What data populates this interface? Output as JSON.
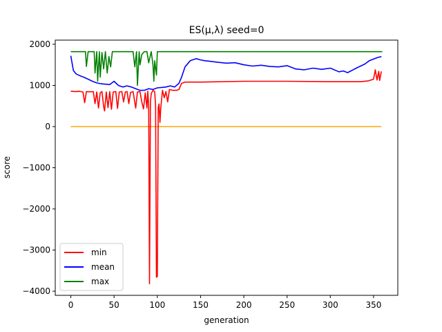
{
  "chart_data": {
    "type": "line",
    "title": "ES(μ,λ) seed=0",
    "xlabel": "generation",
    "ylabel": "score",
    "xlim": [
      -18,
      378
    ],
    "ylim": [
      -4100,
      2100
    ],
    "xticks": [
      0,
      50,
      100,
      150,
      200,
      250,
      300,
      350
    ],
    "yticks": [
      -4000,
      -3000,
      -2000,
      -1000,
      0,
      1000,
      2000
    ],
    "grid": false,
    "legend": "lower-left",
    "legend_entries": [
      "min",
      "mean",
      "max"
    ],
    "series": [
      {
        "name": "min",
        "color": "#ff0000",
        "points": [
          [
            0,
            860
          ],
          [
            5,
            850
          ],
          [
            10,
            855
          ],
          [
            14,
            840
          ],
          [
            16,
            580
          ],
          [
            18,
            850
          ],
          [
            22,
            845
          ],
          [
            26,
            850
          ],
          [
            28,
            560
          ],
          [
            30,
            840
          ],
          [
            32,
            450
          ],
          [
            34,
            820
          ],
          [
            36,
            850
          ],
          [
            38,
            480
          ],
          [
            39,
            380
          ],
          [
            41,
            840
          ],
          [
            43,
            460
          ],
          [
            45,
            850
          ],
          [
            47,
            420
          ],
          [
            49,
            840
          ],
          [
            52,
            850
          ],
          [
            54,
            440
          ],
          [
            56,
            840
          ],
          [
            59,
            850
          ],
          [
            61,
            600
          ],
          [
            63,
            840
          ],
          [
            65,
            850
          ],
          [
            67,
            560
          ],
          [
            69,
            830
          ],
          [
            72,
            850
          ],
          [
            75,
            450
          ],
          [
            77,
            840
          ],
          [
            80,
            850
          ],
          [
            82,
            600
          ],
          [
            84,
            430
          ],
          [
            86,
            820
          ],
          [
            88,
            450
          ],
          [
            89,
            860
          ],
          [
            90,
            500
          ],
          [
            91,
            -3820
          ],
          [
            92,
            600
          ],
          [
            93,
            800
          ],
          [
            95,
            880
          ],
          [
            97,
            850
          ],
          [
            98,
            500
          ],
          [
            99,
            -3660
          ],
          [
            100,
            -3640
          ],
          [
            101,
            450
          ],
          [
            102,
            550
          ],
          [
            103,
            100
          ],
          [
            104,
            450
          ],
          [
            106,
            880
          ],
          [
            108,
            700
          ],
          [
            110,
            850
          ],
          [
            112,
            600
          ],
          [
            114,
            900
          ],
          [
            118,
            880
          ],
          [
            122,
            880
          ],
          [
            125,
            900
          ],
          [
            128,
            1050
          ],
          [
            132,
            1080
          ],
          [
            150,
            1080
          ],
          [
            200,
            1100
          ],
          [
            250,
            1100
          ],
          [
            300,
            1090
          ],
          [
            335,
            1090
          ],
          [
            344,
            1110
          ],
          [
            350,
            1150
          ],
          [
            352,
            1380
          ],
          [
            354,
            1130
          ],
          [
            356,
            1340
          ],
          [
            357,
            1120
          ],
          [
            359,
            1340
          ]
        ]
      },
      {
        "name": "mean",
        "color": "#0000ff",
        "points": [
          [
            0,
            1720
          ],
          [
            3,
            1360
          ],
          [
            6,
            1280
          ],
          [
            10,
            1240
          ],
          [
            15,
            1200
          ],
          [
            20,
            1150
          ],
          [
            25,
            1100
          ],
          [
            30,
            1060
          ],
          [
            35,
            1040
          ],
          [
            40,
            1030
          ],
          [
            45,
            1020
          ],
          [
            50,
            1100
          ],
          [
            55,
            1000
          ],
          [
            60,
            960
          ],
          [
            65,
            990
          ],
          [
            70,
            960
          ],
          [
            75,
            920
          ],
          [
            80,
            880
          ],
          [
            85,
            880
          ],
          [
            90,
            920
          ],
          [
            95,
            900
          ],
          [
            100,
            940
          ],
          [
            105,
            950
          ],
          [
            110,
            960
          ],
          [
            115,
            990
          ],
          [
            120,
            960
          ],
          [
            125,
            1050
          ],
          [
            128,
            1200
          ],
          [
            132,
            1450
          ],
          [
            138,
            1600
          ],
          [
            145,
            1650
          ],
          [
            150,
            1620
          ],
          [
            155,
            1600
          ],
          [
            160,
            1590
          ],
          [
            170,
            1560
          ],
          [
            180,
            1540
          ],
          [
            190,
            1550
          ],
          [
            200,
            1500
          ],
          [
            210,
            1470
          ],
          [
            220,
            1490
          ],
          [
            230,
            1460
          ],
          [
            240,
            1450
          ],
          [
            250,
            1480
          ],
          [
            260,
            1400
          ],
          [
            270,
            1380
          ],
          [
            280,
            1420
          ],
          [
            290,
            1390
          ],
          [
            300,
            1420
          ],
          [
            310,
            1330
          ],
          [
            315,
            1350
          ],
          [
            320,
            1310
          ],
          [
            330,
            1420
          ],
          [
            340,
            1520
          ],
          [
            345,
            1600
          ],
          [
            350,
            1640
          ],
          [
            355,
            1680
          ],
          [
            359,
            1700
          ]
        ]
      },
      {
        "name": "max",
        "color": "#008000",
        "points": [
          [
            0,
            1820
          ],
          [
            17,
            1820
          ],
          [
            18,
            1460
          ],
          [
            20,
            1820
          ],
          [
            27,
            1820
          ],
          [
            28,
            1300
          ],
          [
            30,
            1820
          ],
          [
            31,
            1100
          ],
          [
            33,
            1820
          ],
          [
            34,
            1200
          ],
          [
            36,
            1800
          ],
          [
            38,
            1400
          ],
          [
            40,
            1820
          ],
          [
            42,
            1300
          ],
          [
            44,
            1700
          ],
          [
            46,
            1450
          ],
          [
            48,
            1820
          ],
          [
            50,
            1820
          ],
          [
            70,
            1820
          ],
          [
            72,
            1820
          ],
          [
            74,
            1450
          ],
          [
            76,
            1820
          ],
          [
            77,
            1000
          ],
          [
            79,
            1820
          ],
          [
            80,
            1500
          ],
          [
            82,
            1750
          ],
          [
            85,
            1820
          ],
          [
            88,
            1820
          ],
          [
            90,
            1550
          ],
          [
            93,
            1820
          ],
          [
            95,
            1500
          ],
          [
            96,
            1100
          ],
          [
            97,
            1600
          ],
          [
            99,
            1250
          ],
          [
            100,
            1820
          ],
          [
            103,
            1820
          ],
          [
            360,
            1820
          ]
        ]
      },
      {
        "name": "",
        "color": "#ffa500",
        "points": [
          [
            0,
            0
          ],
          [
            359,
            0
          ]
        ]
      }
    ]
  }
}
